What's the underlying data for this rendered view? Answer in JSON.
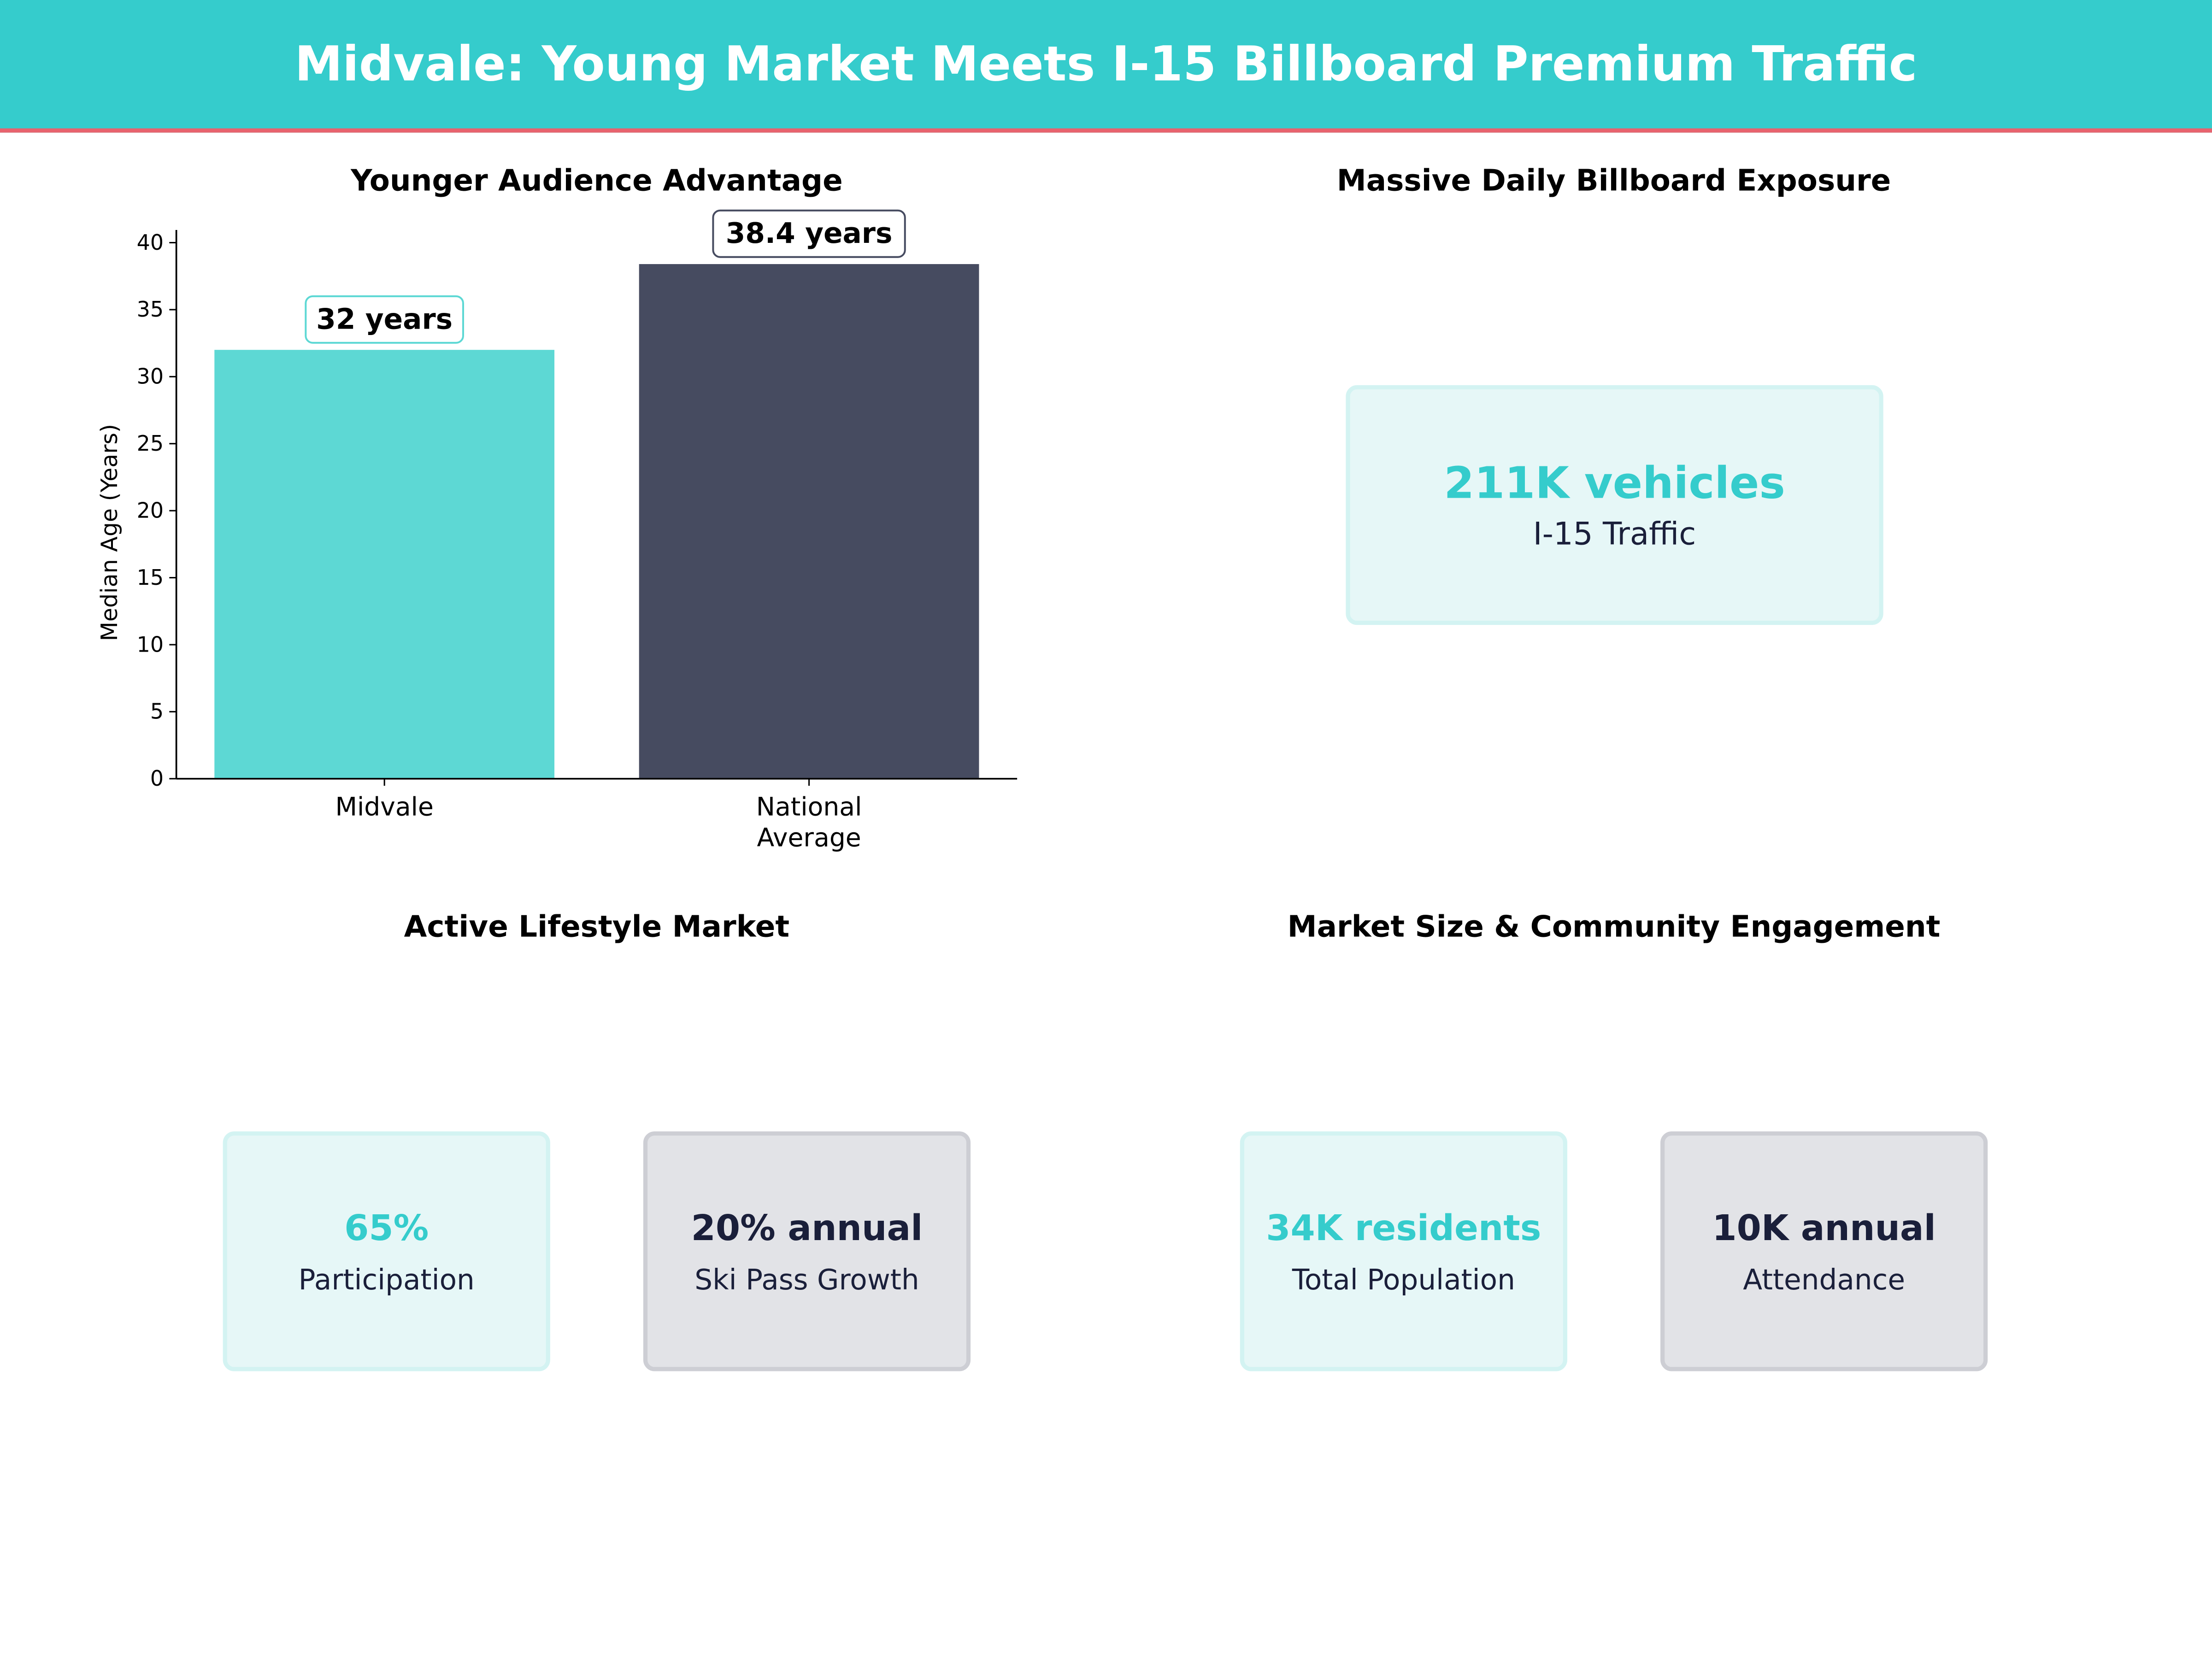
{
  "header": {
    "title": "Midvale: Young Market Meets I-15 Billboard Premium Traffic"
  },
  "colors": {
    "accent": "#35CCCC",
    "header_underline": "#E8636E",
    "midvale_bar": "#5DD8D4",
    "national_bar": "#464B60",
    "dark_text": "#1A1F3A"
  },
  "chart_data": {
    "type": "bar",
    "title": "Younger Audience Advantage",
    "xlabel": "",
    "ylabel": "Median Age (Years)",
    "categories": [
      "Midvale",
      "National\nAverage"
    ],
    "values": [
      32,
      38.4
    ],
    "data_labels": [
      "32 years",
      "38.4 years"
    ],
    "ylim": [
      0,
      40.8
    ],
    "yticks": [
      0,
      5,
      10,
      15,
      20,
      25,
      30,
      35,
      40
    ],
    "grid": false
  },
  "exposure": {
    "title": "Massive Daily Billboard Exposure",
    "value": "211K vehicles",
    "label": "I-15 Traffic"
  },
  "lifestyle": {
    "title": "Active Lifestyle Market",
    "cards": [
      {
        "value": "65%",
        "label": "Participation"
      },
      {
        "value": "20% annual",
        "label": "Ski Pass Growth"
      }
    ]
  },
  "market": {
    "title": "Market Size & Community Engagement",
    "cards": [
      {
        "value": "34K residents",
        "label": "Total Population"
      },
      {
        "value": "10K annual",
        "label": "Attendance"
      }
    ]
  }
}
